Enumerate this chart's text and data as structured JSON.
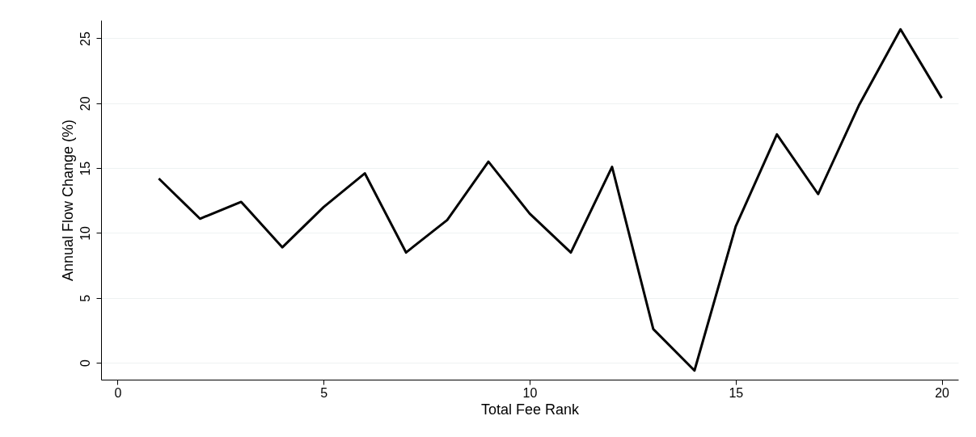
{
  "chart_data": {
    "type": "line",
    "xlabel": "Total Fee Rank",
    "ylabel": "Annual Flow Change (%)",
    "x": [
      1,
      2,
      3,
      4,
      5,
      6,
      7,
      8,
      9,
      10,
      11,
      12,
      13,
      14,
      15,
      16,
      17,
      18,
      19,
      20
    ],
    "series": [
      {
        "color": "#000000",
        "values": [
          14.2,
          11.1,
          12.4,
          8.9,
          12.0,
          14.6,
          8.5,
          11.0,
          15.5,
          11.5,
          8.5,
          15.1,
          2.6,
          -0.6,
          10.5,
          17.6,
          13.0,
          19.9,
          25.7,
          20.4
        ]
      }
    ],
    "xlim": [
      -0.4,
      20.4
    ],
    "ylim": [
      -1.3,
      26.4
    ],
    "xticks": [
      0,
      5,
      10,
      15,
      20
    ],
    "yticks": [
      0,
      5,
      10,
      15,
      20,
      25
    ],
    "grid": "y",
    "marker": "none",
    "line_style": "solid"
  }
}
